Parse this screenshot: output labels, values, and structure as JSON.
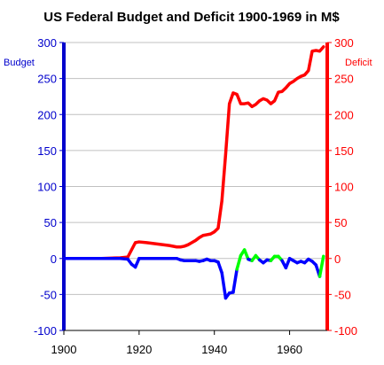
{
  "chart_data": {
    "type": "line",
    "title": "US Federal Budget and Deficit 1900-1969 in M$",
    "y_left_label": "Budget",
    "y_right_label": "Deficit",
    "xlim": [
      1900,
      1970
    ],
    "ylim": [
      -100,
      300
    ],
    "x_ticks": [
      1900,
      1920,
      1940,
      1960
    ],
    "y_ticks": [
      -100,
      -50,
      0,
      50,
      100,
      150,
      200,
      250,
      300
    ],
    "grid": "horizontal",
    "colors": {
      "title": "#000000",
      "budget": "#ff0000",
      "deficit": "#0000ff",
      "surplus": "#00ff00",
      "left_axis": "#0000cc",
      "right_axis": "#ff0000",
      "grid": "#c0c0c0"
    },
    "budget_series": {
      "color": "#ff0000",
      "points": [
        [
          1900,
          0
        ],
        [
          1905,
          0
        ],
        [
          1910,
          0
        ],
        [
          1915,
          1
        ],
        [
          1917,
          2
        ],
        [
          1918,
          12
        ],
        [
          1919,
          22
        ],
        [
          1920,
          23
        ],
        [
          1922,
          22
        ],
        [
          1925,
          20
        ],
        [
          1928,
          18
        ],
        [
          1930,
          16
        ],
        [
          1931,
          16
        ],
        [
          1932,
          17
        ],
        [
          1933,
          19
        ],
        [
          1934,
          22
        ],
        [
          1935,
          25
        ],
        [
          1936,
          29
        ],
        [
          1937,
          32
        ],
        [
          1938,
          33
        ],
        [
          1939,
          34
        ],
        [
          1940,
          37
        ],
        [
          1941,
          42
        ],
        [
          1942,
          80
        ],
        [
          1943,
          145
        ],
        [
          1944,
          215
        ],
        [
          1945,
          230
        ],
        [
          1946,
          228
        ],
        [
          1947,
          215
        ],
        [
          1948,
          215
        ],
        [
          1949,
          216
        ],
        [
          1950,
          211
        ],
        [
          1951,
          214
        ],
        [
          1952,
          219
        ],
        [
          1953,
          222
        ],
        [
          1954,
          220
        ],
        [
          1955,
          215
        ],
        [
          1956,
          219
        ],
        [
          1957,
          231
        ],
        [
          1958,
          232
        ],
        [
          1959,
          237
        ],
        [
          1960,
          243
        ],
        [
          1961,
          246
        ],
        [
          1962,
          250
        ],
        [
          1963,
          253
        ],
        [
          1964,
          255
        ],
        [
          1965,
          261
        ],
        [
          1966,
          288
        ],
        [
          1967,
          289
        ],
        [
          1968,
          288
        ],
        [
          1969,
          294
        ]
      ]
    },
    "balance_series": {
      "points": [
        [
          1900,
          0
        ],
        [
          1905,
          0
        ],
        [
          1910,
          0
        ],
        [
          1915,
          0
        ],
        [
          1917,
          -1
        ],
        [
          1918,
          -8
        ],
        [
          1919,
          -12
        ],
        [
          1920,
          0
        ],
        [
          1925,
          0
        ],
        [
          1930,
          0
        ],
        [
          1931,
          -2
        ],
        [
          1932,
          -3
        ],
        [
          1933,
          -3
        ],
        [
          1934,
          -3
        ],
        [
          1935,
          -3
        ],
        [
          1936,
          -4
        ],
        [
          1937,
          -3
        ],
        [
          1938,
          -1
        ],
        [
          1939,
          -3
        ],
        [
          1940,
          -3
        ],
        [
          1941,
          -5
        ],
        [
          1942,
          -20
        ],
        [
          1943,
          -55
        ],
        [
          1944,
          -48
        ],
        [
          1945,
          -47
        ],
        [
          1946,
          -15
        ],
        [
          1947,
          4
        ],
        [
          1948,
          12
        ],
        [
          1949,
          -1
        ],
        [
          1950,
          -3
        ],
        [
          1951,
          4
        ],
        [
          1952,
          -2
        ],
        [
          1953,
          -6
        ],
        [
          1954,
          -2
        ],
        [
          1955,
          -3
        ],
        [
          1956,
          3
        ],
        [
          1957,
          3
        ],
        [
          1958,
          -3
        ],
        [
          1959,
          -13
        ],
        [
          1960,
          0
        ],
        [
          1961,
          -3
        ],
        [
          1962,
          -6
        ],
        [
          1963,
          -4
        ],
        [
          1964,
          -6
        ],
        [
          1965,
          -1
        ],
        [
          1966,
          -4
        ],
        [
          1967,
          -9
        ],
        [
          1968,
          -25
        ],
        [
          1969,
          3
        ]
      ],
      "positive_color": "#00ff00",
      "negative_color": "#0000ff"
    }
  }
}
